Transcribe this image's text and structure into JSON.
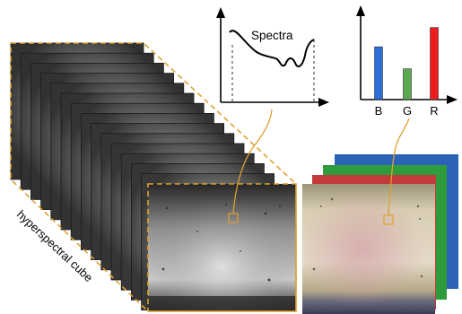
{
  "spectra_panel": {
    "title": "Spectra"
  },
  "rgb_panel": {
    "bars": [
      {
        "label": "B",
        "value": 0.6,
        "color": "#2f6fd6"
      },
      {
        "label": "G",
        "value": 0.35,
        "color": "#5aa850"
      },
      {
        "label": "R",
        "value": 0.82,
        "color": "#ee1c1c"
      }
    ]
  },
  "cube": {
    "label": "hyperspectral cube",
    "outline_color": "#e0a030"
  },
  "rgb_layer_colors": [
    "#2b63b8",
    "#2e9b3c",
    "#c43a3a"
  ]
}
